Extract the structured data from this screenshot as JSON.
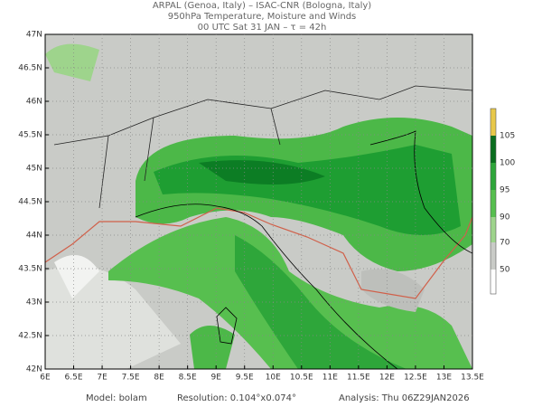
{
  "header": {
    "line1": "ARPAL (Genoa, Italy)  –  ISAC-CNR (Bologna, Italy)",
    "line2": "950hPa Temperature, Moisture and Winds",
    "line3": "00 UTC Sat 31 JAN  –  τ = 42h"
  },
  "map": {
    "lon_labels": [
      "6E",
      "6.5E",
      "7E",
      "7.5E",
      "8E",
      "8.5E",
      "9E",
      "9.5E",
      "10E",
      "10.5E",
      "11E",
      "11.5E",
      "12E",
      "12.5E",
      "13E",
      "13.5E"
    ],
    "lat_labels": [
      "42N",
      "42.5N",
      "43N",
      "43.5N",
      "44N",
      "44.5N",
      "45N",
      "45.5N",
      "46N",
      "46.5N",
      "47N"
    ]
  },
  "colorbar": {
    "labels": [
      "105",
      "100",
      "95",
      "90",
      "70",
      "50"
    ]
  },
  "footer": {
    "model": "Model: bolam",
    "resolution": "Resolution: 0.104°x0.074°",
    "analysis": "Analysis: Thu 06Z29JAN2026"
  }
}
